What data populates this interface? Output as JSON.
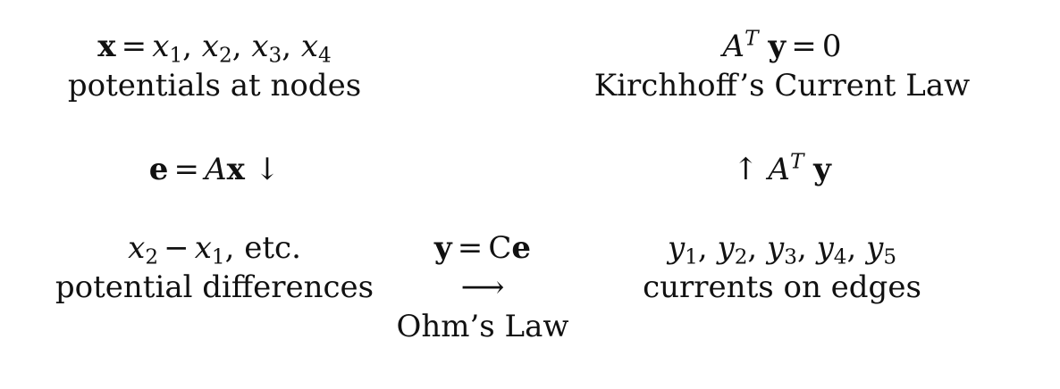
{
  "top_left": {
    "bold_x": "x",
    "equals": "=",
    "var": "x",
    "subscripts": [
      "1",
      "2",
      "3",
      "4"
    ],
    "comma": ",",
    "caption": "potentials at nodes"
  },
  "top_right": {
    "A": "A",
    "T": "T",
    "bold_y": "y",
    "equals": "=",
    "rhs": "0",
    "caption": "Kirchhoff’s Current Law"
  },
  "mid_left": {
    "bold_e": "e",
    "equals": "=",
    "A": "A",
    "bold_x": "x",
    "arrow": "↓"
  },
  "mid_right": {
    "arrow": "↑",
    "A": "A",
    "T": "T",
    "bold_y": "y"
  },
  "bottom_left": {
    "var": "x",
    "sub_a": "2",
    "minus": "−",
    "sub_b": "1",
    "etc": ", etc.",
    "caption": "potential differences"
  },
  "bottom_center": {
    "bold_y": "y",
    "equals": "=",
    "C": "C",
    "bold_e": "e",
    "arrow": "⟶",
    "caption": "Ohm’s Law"
  },
  "bottom_right": {
    "var": "y",
    "subscripts": [
      "1",
      "2",
      "3",
      "4",
      "5"
    ],
    "comma": ",",
    "caption": "currents on edges"
  }
}
